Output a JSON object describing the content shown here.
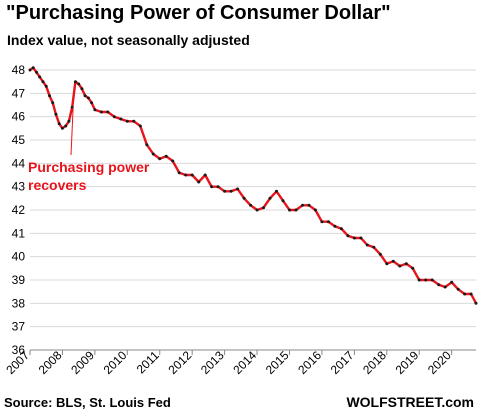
{
  "header": {
    "title": "\"Purchasing Power of Consumer Dollar\"",
    "subtitle": "Index value, not seasonally adjusted"
  },
  "footer": {
    "source": "Source: BLS, St. Louis Fed",
    "brand": "WOLFSTREET.com"
  },
  "chart_data": {
    "type": "line",
    "title": "\"Purchasing Power of Consumer Dollar\"",
    "subtitle": "Index value, not seasonally adjusted",
    "xlabel": "",
    "ylabel": "",
    "xlim": [
      2007.0,
      2020.75
    ],
    "ylim": [
      36,
      48
    ],
    "x_ticks": [
      "2007",
      "2008",
      "2009",
      "2010",
      "2011",
      "2012",
      "2013",
      "2014",
      "2015",
      "2016",
      "2017",
      "2018",
      "2019",
      "2020"
    ],
    "y_ticks": [
      36,
      37,
      38,
      39,
      40,
      41,
      42,
      43,
      44,
      45,
      46,
      47,
      48
    ],
    "grid": "horizontal",
    "legend": "none",
    "line_color": "#e8141b",
    "marker_color": "#1a1a1a",
    "series": [
      {
        "x": [
          2007.0,
          2007.1,
          2007.2,
          2007.3,
          2007.4,
          2007.5,
          2007.6,
          2007.7,
          2007.8,
          2007.9,
          2008.0,
          2008.1,
          2008.2,
          2008.3,
          2008.4,
          2008.5,
          2008.6,
          2008.7,
          2008.8,
          2008.9,
          2009.0,
          2009.2,
          2009.4,
          2009.6,
          2009.8,
          2010.0,
          2010.2,
          2010.4,
          2010.6,
          2010.8,
          2011.0,
          2011.2,
          2011.4,
          2011.6,
          2011.8,
          2012.0,
          2012.2,
          2012.4,
          2012.6,
          2012.8,
          2013.0,
          2013.2,
          2013.4,
          2013.6,
          2013.8,
          2014.0,
          2014.2,
          2014.4,
          2014.6,
          2014.8,
          2015.0,
          2015.2,
          2015.4,
          2015.6,
          2015.8,
          2016.0,
          2016.2,
          2016.4,
          2016.6,
          2016.8,
          2017.0,
          2017.2,
          2017.4,
          2017.6,
          2017.8,
          2018.0,
          2018.2,
          2018.4,
          2018.6,
          2018.8,
          2019.0,
          2019.2,
          2019.4,
          2019.6,
          2019.8,
          2020.0,
          2020.2,
          2020.4,
          2020.6,
          2020.75
        ],
        "y": [
          48.0,
          48.1,
          47.9,
          47.7,
          47.5,
          47.3,
          46.9,
          46.6,
          46.1,
          45.7,
          45.5,
          45.6,
          45.8,
          46.4,
          47.5,
          47.4,
          47.2,
          46.9,
          46.8,
          46.6,
          46.3,
          46.2,
          46.2,
          46.0,
          45.9,
          45.8,
          45.8,
          45.6,
          44.8,
          44.4,
          44.2,
          44.3,
          44.1,
          43.6,
          43.5,
          43.5,
          43.2,
          43.5,
          43.0,
          43.0,
          42.8,
          42.8,
          42.9,
          42.5,
          42.2,
          42.0,
          42.1,
          42.5,
          42.8,
          42.4,
          42.0,
          42.0,
          42.2,
          42.2,
          42.0,
          41.5,
          41.5,
          41.3,
          41.2,
          40.9,
          40.8,
          40.8,
          40.5,
          40.4,
          40.1,
          39.7,
          39.8,
          39.6,
          39.7,
          39.5,
          39.0,
          39.0,
          39.0,
          38.8,
          38.7,
          38.9,
          38.6,
          38.4,
          38.4,
          38.0
        ]
      }
    ],
    "annotations": [
      {
        "text": "Purchasing power",
        "color": "#e8141b"
      },
      {
        "text": "recovers",
        "color": "#e8141b"
      }
    ]
  }
}
